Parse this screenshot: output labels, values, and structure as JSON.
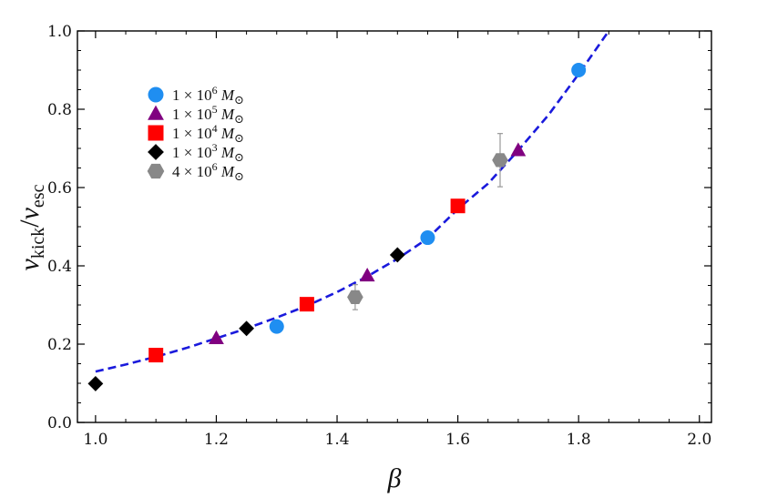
{
  "chart_data": {
    "type": "scatter",
    "xlabel": "β",
    "ylabel": {
      "main": "v",
      "sub1": "kick",
      "slash": "/",
      "main2": "v",
      "sub2": "esc"
    },
    "xlim": [
      0.97,
      2.02
    ],
    "ylim": [
      0.0,
      1.0
    ],
    "xticks": [
      "1.0",
      "1.2",
      "1.4",
      "1.6",
      "1.8",
      "2.0"
    ],
    "yticks": [
      "0.0",
      "0.2",
      "0.4",
      "0.6",
      "0.8",
      "1.0"
    ],
    "grid": false,
    "legend_position": "top-left",
    "series": [
      {
        "name": "1×10^6 M_⊙",
        "legend": {
          "coef": "1",
          "times": "×",
          "base": "10",
          "exp": "6",
          "unit": "M",
          "unit_sub": "⊙"
        },
        "marker": "circle",
        "color": "#1f8ef1",
        "points": [
          {
            "x": 1.3,
            "y": 0.245
          },
          {
            "x": 1.55,
            "y": 0.472
          },
          {
            "x": 1.8,
            "y": 0.9
          }
        ]
      },
      {
        "name": "1×10^5 M_⊙",
        "legend": {
          "coef": "1",
          "times": "×",
          "base": "10",
          "exp": "5",
          "unit": "M",
          "unit_sub": "⊙"
        },
        "marker": "triangle",
        "color": "#800080",
        "points": [
          {
            "x": 1.2,
            "y": 0.215
          },
          {
            "x": 1.45,
            "y": 0.375
          },
          {
            "x": 1.7,
            "y": 0.695
          }
        ]
      },
      {
        "name": "1×10^4 M_⊙",
        "legend": {
          "coef": "1",
          "times": "×",
          "base": "10",
          "exp": "4",
          "unit": "M",
          "unit_sub": "⊙"
        },
        "marker": "square",
        "color": "#ff0000",
        "points": [
          {
            "x": 1.1,
            "y": 0.172
          },
          {
            "x": 1.35,
            "y": 0.302
          },
          {
            "x": 1.6,
            "y": 0.553
          }
        ]
      },
      {
        "name": "1×10^3 M_⊙",
        "legend": {
          "coef": "1",
          "times": "×",
          "base": "10",
          "exp": "3",
          "unit": "M",
          "unit_sub": "⊙"
        },
        "marker": "diamond",
        "color": "#000000",
        "points": [
          {
            "x": 1.0,
            "y": 0.099
          },
          {
            "x": 1.25,
            "y": 0.24
          },
          {
            "x": 1.5,
            "y": 0.428
          }
        ]
      },
      {
        "name": "4×10^6 M_⊙",
        "legend": {
          "coef": "4",
          "times": "×",
          "base": "10",
          "exp": "6",
          "unit": "M",
          "unit_sub": "⊙"
        },
        "marker": "hexagon",
        "color": "#888888",
        "points": [
          {
            "x": 1.43,
            "y": 0.32,
            "err": 0.032
          },
          {
            "x": 1.67,
            "y": 0.67,
            "err": 0.068
          }
        ]
      }
    ],
    "fit_curve": {
      "style": "dashed",
      "color": "#1a1adc",
      "x": [
        1.0,
        1.05,
        1.1,
        1.15,
        1.2,
        1.25,
        1.3,
        1.35,
        1.4,
        1.45,
        1.5,
        1.55,
        1.6,
        1.65,
        1.7,
        1.75,
        1.8,
        1.85
      ],
      "y": [
        0.13,
        0.148,
        0.168,
        0.19,
        0.215,
        0.24,
        0.268,
        0.298,
        0.333,
        0.373,
        0.418,
        0.47,
        0.545,
        0.61,
        0.695,
        0.785,
        0.89,
        1.0
      ]
    }
  }
}
